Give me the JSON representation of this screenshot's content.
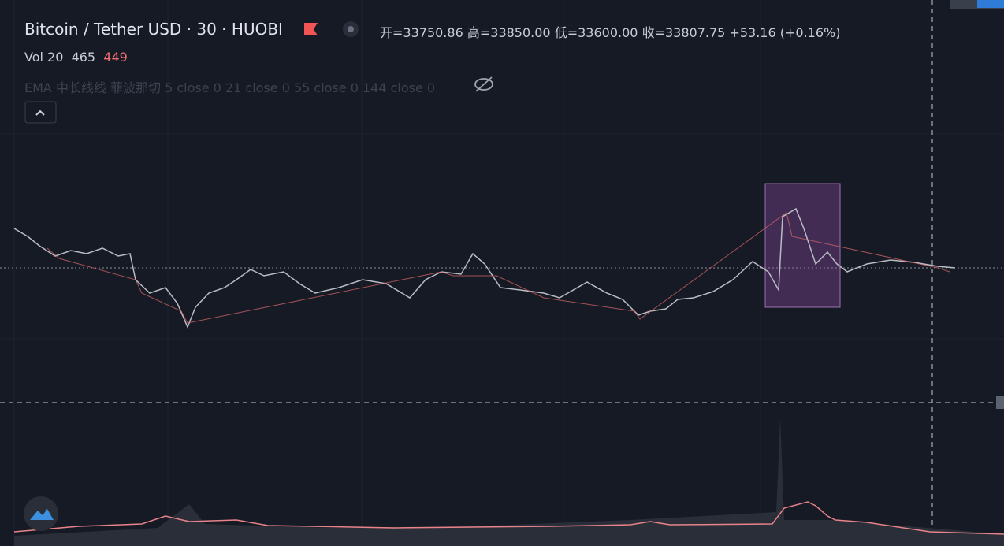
{
  "header": {
    "symbol": "Bitcoin / Tether USD",
    "interval": "30",
    "exchange": "HUOBI",
    "open": "开=33750.86",
    "high": "高=33850.00",
    "low": "低=33600.00",
    "close": "收=33807.75",
    "change": "+53.16 (+0.16%)"
  },
  "volume": {
    "label": "Vol 20",
    "value1": "465",
    "value2": "449"
  },
  "indicator": {
    "label": "EMA 中长线线 菲波那切 5 close 0 21 close 0 55 close 0 144 close 0"
  }
}
